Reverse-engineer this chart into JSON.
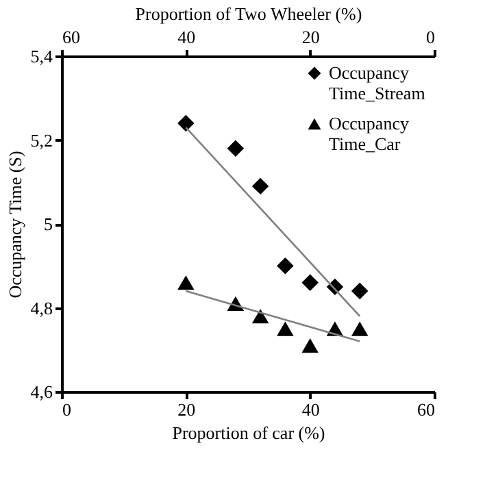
{
  "chart_data": {
    "type": "scatter",
    "xlabel": "Proportion of car (%)",
    "ylabel": "Occupancy Time (S)",
    "x2label": "Proportion of Two Wheeler (%)",
    "xlim": [
      0,
      60
    ],
    "xticks": [
      0,
      20,
      40,
      60
    ],
    "x2lim": [
      60,
      0
    ],
    "x2ticks": [
      60,
      40,
      20,
      0
    ],
    "ylim": [
      4.6,
      5.4
    ],
    "yticks": [
      {
        "value": 4.6,
        "label": "4,6"
      },
      {
        "value": 4.8,
        "label": "4,8"
      },
      5,
      {
        "value": 5.2,
        "label": "5,2"
      },
      {
        "value": 5.4,
        "label": "5,4"
      }
    ],
    "grid": false,
    "legend": "top right",
    "series": [
      {
        "name": "Occupancy Time_Stream",
        "color": "#000000",
        "marker": "diamond",
        "x": [
          20,
          28,
          32,
          36,
          40,
          44,
          48
        ],
        "values": [
          5.24,
          5.18,
          5.09,
          4.9,
          4.86,
          4.85,
          4.84
        ]
      },
      {
        "name": "Occupancy Time_Car",
        "color": "#000000",
        "marker": "triangle",
        "x": [
          20,
          28,
          32,
          36,
          40,
          44,
          48
        ],
        "values": [
          4.86,
          4.81,
          4.78,
          4.75,
          4.71,
          4.75,
          4.75
        ]
      },
      {
        "type": "line",
        "color": "#808080",
        "marker": "none",
        "x": [
          20,
          48
        ],
        "values": [
          5.23,
          4.78
        ]
      },
      {
        "type": "line",
        "color": "#808080",
        "marker": "none",
        "x": [
          20,
          48
        ],
        "values": [
          4.84,
          4.72
        ]
      }
    ]
  }
}
